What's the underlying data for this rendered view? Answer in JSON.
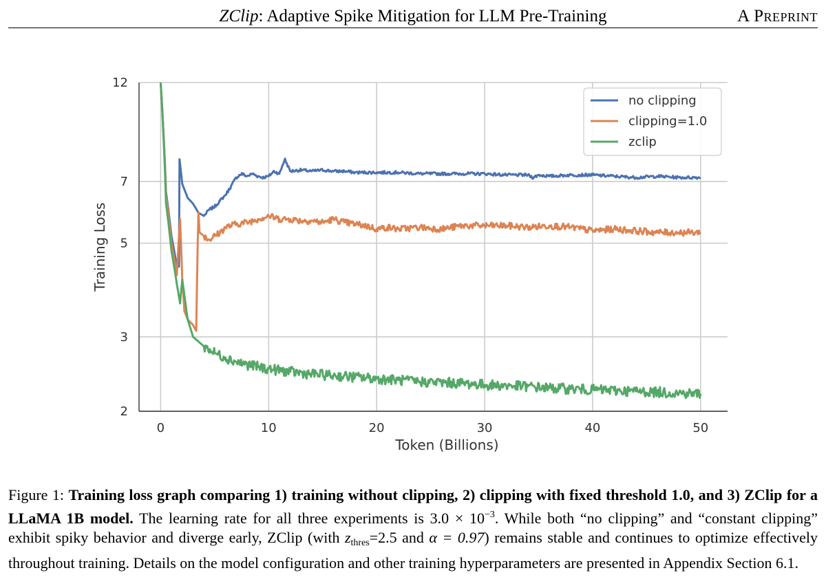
{
  "header": {
    "title_italic": "ZClip",
    "title_rest": ": Adaptive Spike Mitigation for LLM Pre-Training",
    "right": "A Preprint"
  },
  "chart_data": {
    "type": "line",
    "title": "",
    "xlabel": "Token (Billions)",
    "ylabel": "Training Loss",
    "yscale": "log",
    "xlim": [
      -2,
      52.5
    ],
    "ylim": [
      2,
      12
    ],
    "xticks": [
      0,
      10,
      20,
      30,
      40,
      50
    ],
    "yticks": [
      2,
      3,
      5,
      7,
      12
    ],
    "grid": true,
    "legend_position": "top-right",
    "colors": {
      "no clipping": "#4c72b0",
      "clipping=1.0": "#dd8452",
      "zclip": "#55a868"
    },
    "series": [
      {
        "name": "no clipping",
        "color": "#4c72b0",
        "x": [
          0,
          0.5,
          1,
          1.5,
          1.7,
          1.75,
          2,
          2.5,
          3,
          3.5,
          4,
          4.5,
          5,
          5.5,
          6,
          6.5,
          7,
          7.5,
          8,
          8.5,
          9,
          9.5,
          10,
          10.5,
          11,
          11.5,
          12,
          13,
          14,
          15,
          16,
          17,
          18,
          19,
          20,
          22,
          24,
          26,
          28,
          30,
          32,
          34,
          34.5,
          35,
          36,
          38,
          40,
          42,
          44,
          46,
          48,
          50
        ],
        "y": [
          12,
          6.6,
          5.2,
          4.4,
          4.4,
          7.9,
          6.9,
          6.4,
          6.2,
          5.9,
          5.8,
          6.0,
          6.1,
          6.3,
          6.5,
          6.8,
          7.15,
          7.3,
          7.2,
          7.3,
          7.2,
          7.15,
          7.2,
          7.4,
          7.3,
          7.9,
          7.4,
          7.45,
          7.4,
          7.45,
          7.4,
          7.4,
          7.35,
          7.35,
          7.35,
          7.35,
          7.3,
          7.3,
          7.3,
          7.3,
          7.25,
          7.25,
          7.15,
          7.25,
          7.2,
          7.25,
          7.25,
          7.2,
          7.15,
          7.2,
          7.15,
          7.15
        ]
      },
      {
        "name": "clipping=1.0",
        "color": "#dd8452",
        "x": [
          0,
          0.5,
          1,
          1.5,
          1.8,
          2,
          2.2,
          2.5,
          3,
          3.3,
          3.5,
          3.6,
          4,
          4.5,
          5,
          5.5,
          6,
          6.5,
          7,
          8,
          9,
          10,
          11,
          12,
          13,
          14,
          15,
          16,
          17,
          18,
          19,
          20,
          21,
          22,
          24,
          26,
          28,
          30,
          32,
          34,
          36,
          38,
          40,
          42,
          44,
          46,
          48,
          50
        ],
        "y": [
          12,
          6.5,
          5.0,
          4.2,
          5.7,
          4.1,
          3.45,
          3.3,
          3.2,
          3.1,
          5.9,
          5.3,
          5.2,
          5.1,
          5.2,
          5.3,
          5.45,
          5.5,
          5.55,
          5.6,
          5.7,
          5.8,
          5.7,
          5.7,
          5.65,
          5.65,
          5.6,
          5.7,
          5.6,
          5.55,
          5.5,
          5.4,
          5.45,
          5.4,
          5.45,
          5.4,
          5.5,
          5.5,
          5.5,
          5.45,
          5.5,
          5.45,
          5.35,
          5.4,
          5.35,
          5.3,
          5.3,
          5.3
        ]
      },
      {
        "name": "zclip",
        "color": "#55a868",
        "x": [
          0,
          0.5,
          1,
          1.5,
          1.8,
          2,
          2.3,
          2.5,
          3,
          4,
          5,
          6,
          7,
          8,
          9,
          10,
          12,
          14,
          16,
          18,
          20,
          22,
          24,
          26,
          28,
          30,
          32,
          34,
          36,
          38,
          40,
          42,
          44,
          46,
          48,
          50
        ],
        "y": [
          12,
          6.2,
          4.8,
          4.0,
          3.6,
          4.1,
          3.6,
          3.3,
          3.0,
          2.85,
          2.75,
          2.68,
          2.62,
          2.58,
          2.55,
          2.52,
          2.48,
          2.45,
          2.43,
          2.41,
          2.39,
          2.37,
          2.35,
          2.34,
          2.33,
          2.31,
          2.3,
          2.29,
          2.27,
          2.26,
          2.25,
          2.24,
          2.23,
          2.22,
          2.21,
          2.2
        ]
      }
    ]
  },
  "caption": {
    "label": "Figure 1: ",
    "bold": "Training loss graph comparing 1) training without clipping, 2) clipping with fixed threshold 1.0, and 3) ZClip for a LLaMA 1B model.",
    "t1": " The learning rate for all three experiments is 3.0 × 10",
    "exp": "−3",
    "t2": ". While both “no clipping” and “constant clipping” exhibit spiky behavior and diverge early, ZClip (with ",
    "z": "z",
    "zsub": "thres",
    "t3": "=2.5 and ",
    "alpha": "α = 0.97",
    "t4": ") remains stable and continues to optimize effectively throughout training. Details on the model configuration and other training hyperparameters are presented in Appendix Section 6.1."
  }
}
